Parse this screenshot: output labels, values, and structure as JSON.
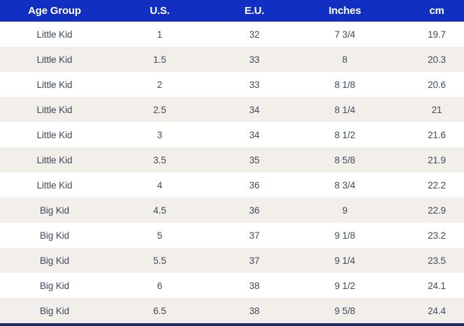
{
  "table": {
    "columns": [
      "Age Group",
      "U.S.",
      "E.U.",
      "Inches",
      "cm"
    ],
    "rows": [
      [
        "Little Kid",
        "1",
        "32",
        "7 3/4",
        "19.7"
      ],
      [
        "Little Kid",
        "1.5",
        "33",
        "8",
        "20.3"
      ],
      [
        "Little Kid",
        "2",
        "33",
        "8 1/8",
        "20.6"
      ],
      [
        "Little Kid",
        "2.5",
        "34",
        "8 1/4",
        "21"
      ],
      [
        "Little Kid",
        "3",
        "34",
        "8 1/2",
        "21.6"
      ],
      [
        "Little Kid",
        "3.5",
        "35",
        "8 5/8",
        "21.9"
      ],
      [
        "Little Kid",
        "4",
        "36",
        "8 3/4",
        "22.2"
      ],
      [
        "Big Kid",
        "4.5",
        "36",
        "9",
        "22.9"
      ],
      [
        "Big Kid",
        "5",
        "37",
        "9 1/8",
        "23.2"
      ],
      [
        "Big Kid",
        "5.5",
        "37",
        "9 1/4",
        "23.5"
      ],
      [
        "Big Kid",
        "6",
        "38",
        "9 1/2",
        "24.1"
      ],
      [
        "Big Kid",
        "6.5",
        "38",
        "9 5/8",
        "24.4"
      ]
    ]
  },
  "colors": {
    "header_bg": "#1130c2",
    "header_text": "#ffffff",
    "row_bg": "#ffffff",
    "row_alt_bg": "#f2efea",
    "cell_text": "#3f4b5c",
    "bottom_bar": "#1e2a5a"
  }
}
